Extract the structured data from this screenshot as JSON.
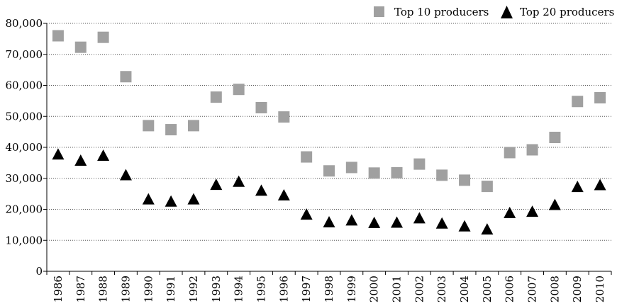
{
  "chart_data": {
    "type": "scatter",
    "title": "",
    "xlabel": "",
    "ylabel": "",
    "categories": [
      "1986",
      "1987",
      "1988",
      "1989",
      "1990",
      "1991",
      "1992",
      "1993",
      "1994",
      "1995",
      "1996",
      "1997",
      "1998",
      "1999",
      "2000",
      "2001",
      "2002",
      "2003",
      "2004",
      "2005",
      "2006",
      "2007",
      "2008",
      "2009",
      "2010"
    ],
    "ylim": [
      0,
      80000
    ],
    "yticks": [
      0,
      10000,
      20000,
      30000,
      40000,
      50000,
      60000,
      70000,
      80000
    ],
    "ytick_labels": [
      "0",
      "10,000",
      "20,000",
      "30,000",
      "40,000",
      "50,000",
      "60,000",
      "70,000",
      "80,000"
    ],
    "grid": true,
    "legend_position": "top-right",
    "series": [
      {
        "name": "Top 10 producers",
        "marker": "square",
        "color": "#a0a0a0",
        "values": [
          76000,
          72300,
          75500,
          62800,
          47000,
          45700,
          47000,
          56200,
          58700,
          52800,
          49800,
          36900,
          32400,
          33500,
          31700,
          31800,
          34600,
          31000,
          29400,
          27400,
          38300,
          39200,
          43200,
          54800,
          56000
        ]
      },
      {
        "name": "Top 20 producers",
        "marker": "triangle",
        "color": "#000000",
        "values": [
          37900,
          35900,
          37500,
          31200,
          23400,
          22700,
          23400,
          28100,
          29100,
          26200,
          24700,
          18500,
          16000,
          16600,
          15800,
          15900,
          17300,
          15600,
          14700,
          13700,
          19000,
          19400,
          21600,
          27400,
          28000
        ]
      }
    ]
  }
}
